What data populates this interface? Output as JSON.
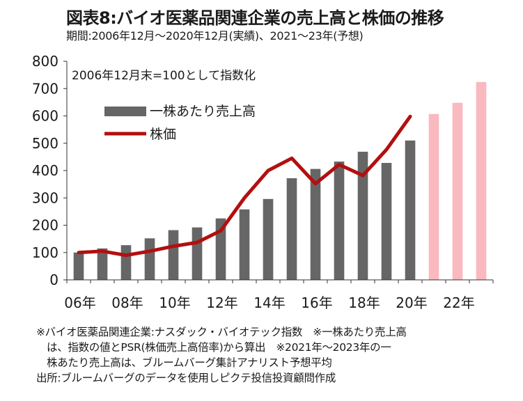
{
  "header": {
    "title": "図表8:バイオ医薬品関連企業の売上高と株価の推移",
    "subtitle": "期間:2006年12月～2020年12月(実績)、2021～23年(予想)"
  },
  "chart_data": {
    "type": "bar",
    "annotation": "2006年12月末=100として指数化",
    "x": [
      2006,
      2007,
      2008,
      2009,
      2010,
      2011,
      2012,
      2013,
      2014,
      2015,
      2016,
      2017,
      2018,
      2019,
      2020,
      2021,
      2022,
      2023
    ],
    "xticks": [
      "06年",
      "08年",
      "10年",
      "12年",
      "14年",
      "16年",
      "18年",
      "20年",
      "22年"
    ],
    "xtick_years": [
      2006,
      2008,
      2010,
      2012,
      2014,
      2016,
      2018,
      2020,
      2022
    ],
    "ylim": [
      0,
      800
    ],
    "yticks": [
      0,
      100,
      200,
      300,
      400,
      500,
      600,
      700,
      800
    ],
    "grid": false,
    "legend_position": "top-left",
    "series": [
      {
        "name": "一株あたり売上高",
        "type": "bar",
        "color": "#666666",
        "values": [
          100,
          115,
          127,
          152,
          182,
          192,
          225,
          258,
          296,
          372,
          406,
          433,
          469,
          428,
          510,
          null,
          null,
          null
        ]
      },
      {
        "name": "一株あたり売上高 (予想)",
        "type": "bar",
        "color": "#f9b9be",
        "values": [
          null,
          null,
          null,
          null,
          null,
          null,
          null,
          null,
          null,
          null,
          null,
          null,
          null,
          null,
          null,
          607,
          648,
          724
        ]
      },
      {
        "name": "株価",
        "type": "line",
        "color": "#b30f0f",
        "values": [
          100,
          105,
          90,
          105,
          123,
          137,
          180,
          300,
          400,
          445,
          352,
          422,
          382,
          477,
          598,
          null,
          null,
          null
        ]
      }
    ]
  },
  "footnotes": {
    "line1": "※バイオ医薬品関連企業:ナスダック・バイオテック指数　※一株あたり売上高",
    "line2": "は、指数の値とPSR(株価売上高倍率)から算出　※2021年～2023年の一",
    "line3": "株あたり売上高は、ブルームバーグ集計アナリスト予想平均",
    "source": "出所:ブルームバーグのデータを使用しピクテ投信投資顧問作成"
  }
}
